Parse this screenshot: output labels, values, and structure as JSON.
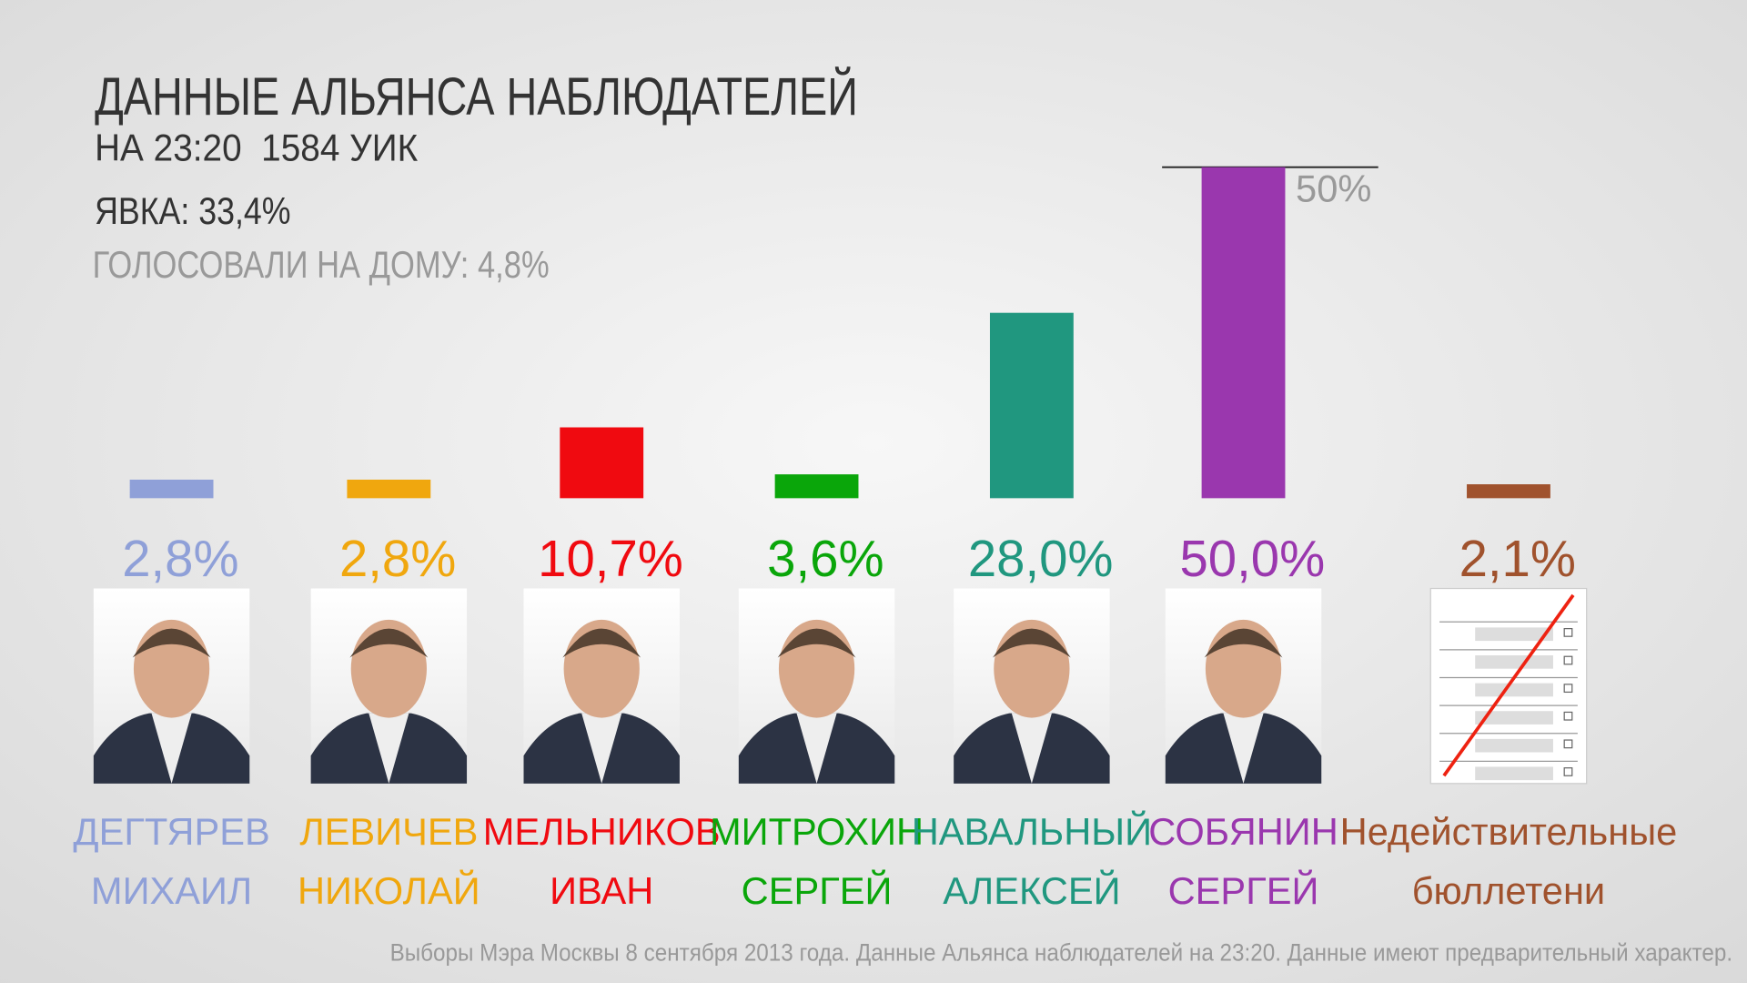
{
  "chart_data": {
    "type": "bar",
    "title": "ДАННЫЕ АЛЬЯНСА НАБЛЮДАТЕЛЕЙ",
    "subtitle": "НА 23:20  1584 УИК",
    "turnout": "ЯВКА: 33,4%",
    "home_voting": "ГОЛОСОВАЛИ НА ДОМУ: 4,8%",
    "categories": [
      [
        "ДЕГТЯРЕВ",
        "МИХАИЛ"
      ],
      [
        "ЛЕВИЧЕВ",
        "НИКОЛАЙ"
      ],
      [
        "МЕЛЬНИКОВ",
        "ИВАН"
      ],
      [
        "МИТРОХИН",
        "СЕРГЕЙ"
      ],
      [
        "НАВАЛЬНЫЙ",
        "АЛЕКСЕЙ"
      ],
      [
        "СОБЯНИН",
        "СЕРГЕЙ"
      ],
      [
        "Недействительные",
        "бюллетени"
      ]
    ],
    "values": [
      2.8,
      2.8,
      10.7,
      3.6,
      28.0,
      50.0,
      2.1
    ],
    "value_labels": [
      "2,8%",
      "2,8%",
      "10,7%",
      "3,6%",
      "28,0%",
      "50,0%",
      "2,1%"
    ],
    "colors": [
      "#8fa0d8",
      "#f0a70e",
      "#f00a10",
      "#0aa60a",
      "#20977f",
      "#9a37ae",
      "#a0522d"
    ],
    "ylim": [
      0,
      50
    ],
    "reference_line": {
      "value": 50,
      "label": "50%"
    },
    "footnote": "Выборы Мэра Москвы 8 сентября 2013 года. Данные Альянса наблюдателей на 23:20. Данные имеют предварительный характер."
  }
}
